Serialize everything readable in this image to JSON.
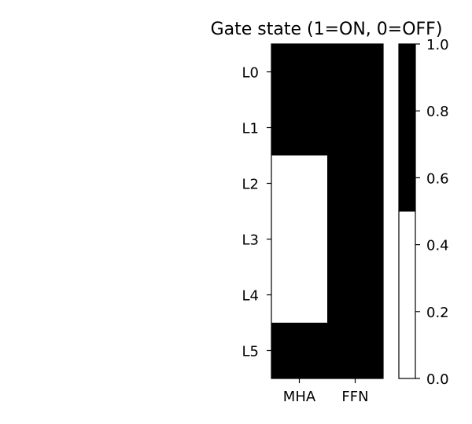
{
  "chart_data": {
    "type": "heatmap",
    "title": "Gate state (1=ON, 0=OFF)",
    "xlabel": "",
    "ylabel": "",
    "x_categories": [
      "MHA",
      "FFN"
    ],
    "y_categories": [
      "L0",
      "L1",
      "L2",
      "L3",
      "L4",
      "L5"
    ],
    "values": [
      [
        1,
        1
      ],
      [
        1,
        1
      ],
      [
        0,
        1
      ],
      [
        0,
        1
      ],
      [
        0,
        1
      ],
      [
        1,
        1
      ]
    ],
    "colormap": {
      "type": "binary",
      "colors": [
        "#ffffff",
        "#000000"
      ],
      "low_color": "#ffffff",
      "high_color": "#000000"
    },
    "colorbar": {
      "range": [
        0.0,
        1.0
      ],
      "ticks": [
        "0.0",
        "0.2",
        "0.4",
        "0.6",
        "0.8",
        "1.0"
      ]
    },
    "grid": false,
    "legend": "colorbar-right"
  }
}
